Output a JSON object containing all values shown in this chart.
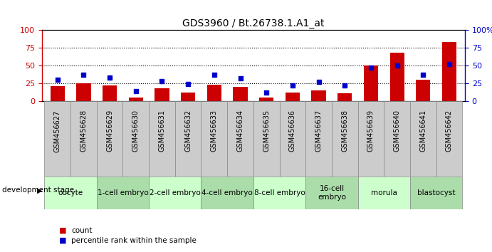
{
  "title": "GDS3960 / Bt.26738.1.A1_at",
  "samples": [
    "GSM456627",
    "GSM456628",
    "GSM456629",
    "GSM456630",
    "GSM456631",
    "GSM456632",
    "GSM456633",
    "GSM456634",
    "GSM456635",
    "GSM456636",
    "GSM456637",
    "GSM456638",
    "GSM456639",
    "GSM456640",
    "GSM456641",
    "GSM456642"
  ],
  "count_values": [
    21,
    25,
    22,
    5,
    18,
    12,
    23,
    20,
    5,
    12,
    15,
    11,
    50,
    68,
    30,
    83
  ],
  "percentile_values": [
    30,
    37,
    33,
    14,
    28,
    24,
    37,
    32,
    12,
    22,
    27,
    22,
    47,
    50,
    37,
    52
  ],
  "bar_color": "#cc0000",
  "dot_color": "#0000cc",
  "ylim": [
    0,
    100
  ],
  "yticks": [
    0,
    25,
    50,
    75,
    100
  ],
  "yticklabels_right": [
    "0",
    "25",
    "50",
    "75",
    "100%"
  ],
  "grid_values": [
    25,
    50,
    75
  ],
  "development_stages": [
    {
      "label": "oocyte",
      "start": 0,
      "end": 1,
      "color": "#ccffcc"
    },
    {
      "label": "1-cell embryo",
      "start": 2,
      "end": 3,
      "color": "#aaddaa"
    },
    {
      "label": "2-cell embryo",
      "start": 4,
      "end": 5,
      "color": "#ccffcc"
    },
    {
      "label": "4-cell embryo",
      "start": 6,
      "end": 7,
      "color": "#aaddaa"
    },
    {
      "label": "8-cell embryo",
      "start": 8,
      "end": 9,
      "color": "#ccffcc"
    },
    {
      "label": "16-cell\nembryo",
      "start": 10,
      "end": 11,
      "color": "#aaddaa"
    },
    {
      "label": "morula",
      "start": 12,
      "end": 13,
      "color": "#ccffcc"
    },
    {
      "label": "blastocyst",
      "start": 14,
      "end": 15,
      "color": "#aaddaa"
    }
  ],
  "left_axis_color": "#cc0000",
  "right_axis_color": "#0000cc",
  "xtick_bg_color": "#cccccc",
  "dev_stage_label": "development stage",
  "legend_count_label": "count",
  "legend_pct_label": "percentile rank within the sample"
}
